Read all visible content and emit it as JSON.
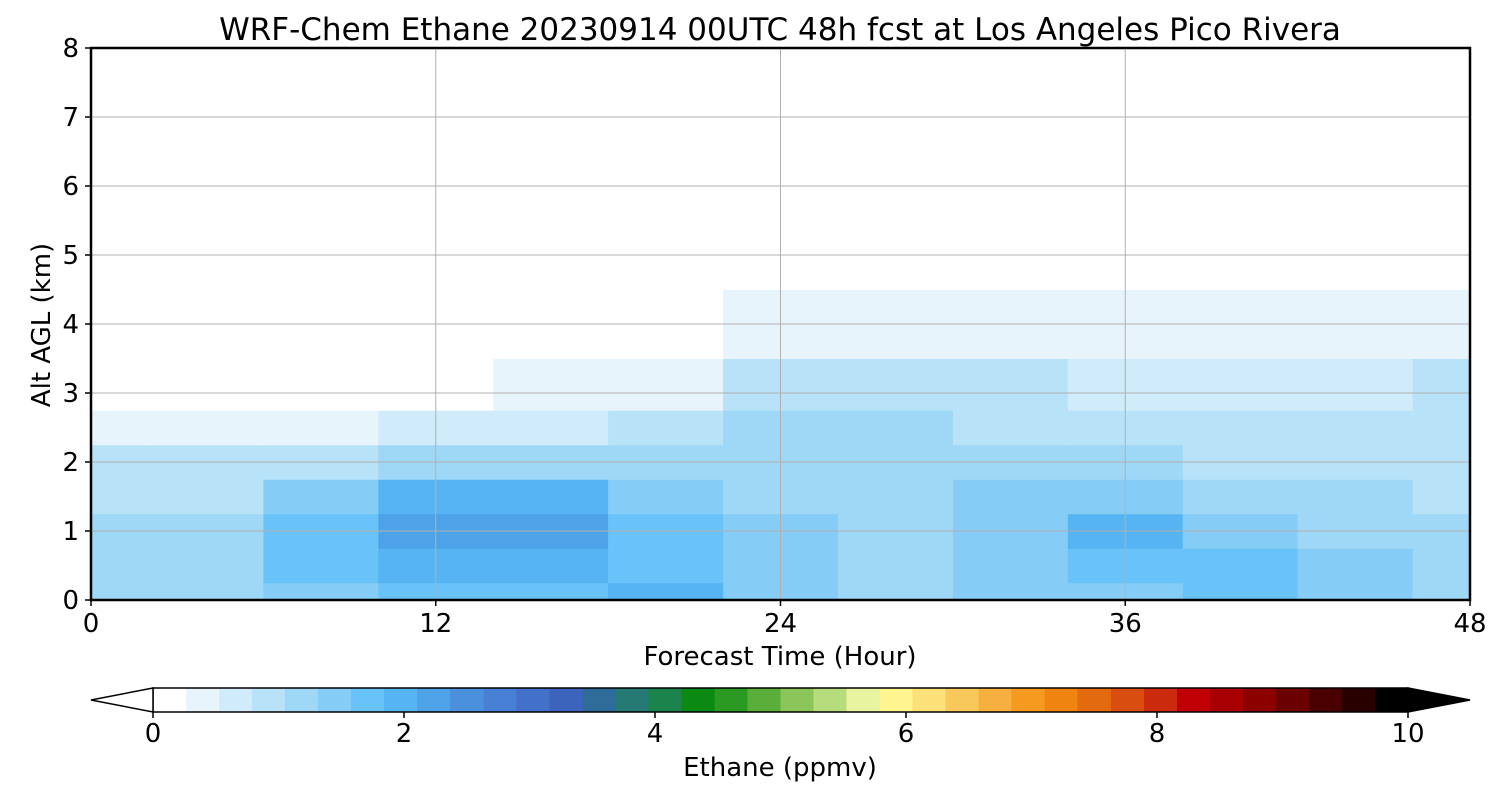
{
  "chart_data": {
    "type": "heatmap",
    "title": "WRF-Chem Ethane  20230914 00UTC 48h fcst at Los Angeles Pico Rivera",
    "xlabel": "Forecast Time (Hour)",
    "ylabel": "Alt AGL (km)",
    "xlim": [
      0,
      48
    ],
    "ylim": [
      0,
      8
    ],
    "x_ticks": [
      "0",
      "12",
      "24",
      "36",
      "48"
    ],
    "y_ticks": [
      "0",
      "1",
      "2",
      "3",
      "4",
      "5",
      "6",
      "7",
      "8"
    ],
    "grid": true,
    "x": [
      0,
      4,
      8,
      12,
      16,
      20,
      24,
      28,
      32,
      36,
      40,
      44,
      48
    ],
    "y": [
      0,
      0.5,
      1,
      1.5,
      2,
      2.5,
      3,
      4,
      5,
      6,
      7,
      8
    ],
    "z": [
      [
        1.3,
        1.3,
        1.5,
        1.7,
        1.8,
        1.9,
        1.4,
        1.3,
        1.4,
        1.5,
        1.6,
        1.4,
        1.3
      ],
      [
        1.3,
        1.3,
        1.6,
        2.0,
        2.0,
        1.8,
        1.4,
        1.3,
        1.4,
        1.7,
        1.6,
        1.4,
        1.3
      ],
      [
        1.2,
        1.2,
        1.7,
        2.2,
        2.3,
        1.7,
        1.4,
        1.3,
        1.5,
        1.9,
        1.5,
        1.3,
        1.2
      ],
      [
        1.0,
        1.0,
        1.4,
        1.9,
        1.9,
        1.5,
        1.3,
        1.2,
        1.4,
        1.5,
        1.3,
        1.1,
        1.0
      ],
      [
        0.8,
        0.8,
        0.9,
        1.1,
        1.1,
        1.1,
        1.1,
        1.2,
        1.2,
        1.1,
        1.0,
        0.9,
        0.9
      ],
      [
        0.3,
        0.4,
        0.5,
        0.6,
        0.7,
        0.9,
        1.1,
        1.2,
        1.0,
        0.9,
        0.8,
        0.8,
        0.9
      ],
      [
        0.1,
        0.1,
        0.2,
        0.2,
        0.3,
        0.5,
        0.8,
        1.0,
        0.8,
        0.7,
        0.7,
        0.7,
        0.8
      ],
      [
        0.1,
        0.1,
        0.1,
        0.1,
        0.1,
        0.2,
        0.3,
        0.4,
        0.4,
        0.3,
        0.3,
        0.3,
        0.3
      ],
      [
        0.1,
        0.1,
        0.1,
        0.1,
        0.1,
        0.1,
        0.2,
        0.2,
        0.2,
        0.2,
        0.2,
        0.2,
        0.2
      ],
      [
        0.1,
        0.1,
        0.1,
        0.1,
        0.1,
        0.1,
        0.2,
        0.2,
        0.2,
        0.2,
        0.2,
        0.1,
        0.1
      ],
      [
        0.1,
        0.1,
        0.1,
        0.2,
        0.1,
        0.1,
        0.1,
        0.2,
        0.2,
        0.1,
        0.1,
        0.1,
        0.1
      ],
      [
        0.1,
        0.2,
        0.2,
        0.2,
        0.1,
        0.1,
        0.1,
        0.1,
        0.1,
        0.1,
        0.1,
        0.1,
        0.1
      ]
    ],
    "colorbar": {
      "label": "Ethane  (ppmv)",
      "min": 0,
      "max": 10,
      "ticks": [
        "0",
        "2",
        "4",
        "6",
        "8",
        "10"
      ],
      "extend": "both",
      "colors": [
        "#ffffff",
        "#e8f4fc",
        "#d0ebfa",
        "#b8e2f8",
        "#9fd8f6",
        "#85cdf6",
        "#6ac3f8",
        "#56b4f2",
        "#4ea2e8",
        "#4a90dc",
        "#4780d4",
        "#4370c8",
        "#3c64bc",
        "#2f6c9a",
        "#257a74",
        "#1b844c",
        "#0a8a12",
        "#2a9a22",
        "#5aaf3a",
        "#8cc65a",
        "#b6dc7c",
        "#e8f4a0",
        "#fff48e",
        "#fce078",
        "#f9c85a",
        "#f7b040",
        "#f59a1e",
        "#ef8410",
        "#e46a10",
        "#d94e10",
        "#cc2a0c",
        "#c00004",
        "#a80000",
        "#8c0000",
        "#6a0000",
        "#4a0000",
        "#280000",
        "#000000"
      ]
    }
  }
}
